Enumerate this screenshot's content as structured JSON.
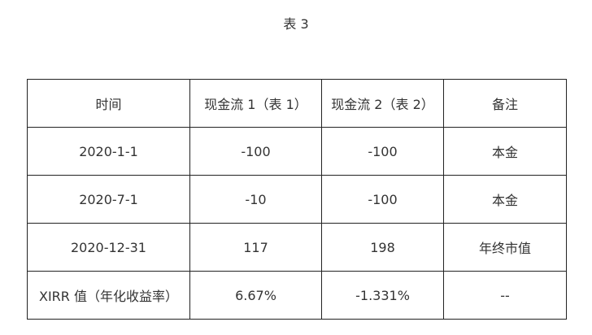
{
  "caption": "表 3",
  "table": {
    "headers": [
      "时间",
      "现金流 1（表 1）",
      "现金流 2（表 2）",
      "备注"
    ],
    "rows": [
      [
        "2020-1-1",
        "-100",
        "-100",
        "本金"
      ],
      [
        "2020-7-1",
        "-10",
        "-100",
        "本金"
      ],
      [
        "2020-12-31",
        "117",
        "198",
        "年终市值"
      ],
      [
        "XIRR 值（年化收益率）",
        "6.67%",
        "-1.331%",
        "--"
      ]
    ]
  }
}
